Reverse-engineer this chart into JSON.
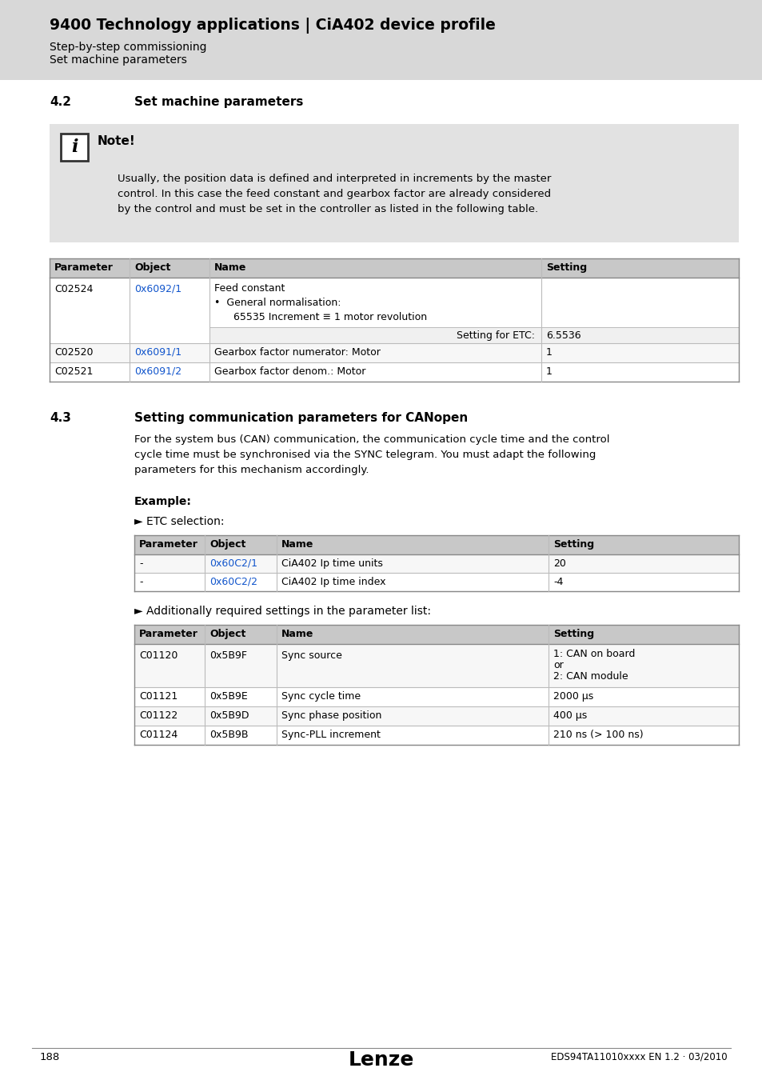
{
  "page_bg": "#ffffff",
  "header_bg": "#d8d8d8",
  "header_title": "9400 Technology applications | CiA402 device profile",
  "header_sub1": "Step-by-step commissioning",
  "header_sub2": "Set machine parameters",
  "section1_num": "4.2",
  "section1_title": "Set machine parameters",
  "note_bg": "#e2e2e2",
  "note_title": "Note!",
  "note_text_lines": [
    "Usually, the position data is defined and interpreted in increments by the master",
    "control. In this case the feed constant and gearbox factor are already considered",
    "by the control and must be set in the controller as listed in the following table."
  ],
  "section2_num": "4.3",
  "section2_title": "Setting communication parameters for CANopen",
  "section2_body_lines": [
    "For the system bus (CAN) communication, the communication cycle time and the control",
    "cycle time must be synchronised via the SYNC telegram. You must adapt the following",
    "parameters for this mechanism accordingly."
  ],
  "example_label": "Example:",
  "etc_label": "► ETC selection:",
  "additional_label": "► Additionally required settings in the parameter list:",
  "footer_page": "188",
  "footer_brand": "Lenze",
  "footer_doc": "EDS94TA11010xxxx EN 1.2 · 03/2010",
  "link_color": "#1155cc",
  "table_header_bg": "#c8c8c8",
  "table_border_dark": "#888888",
  "table_border_light": "#bbbbbb"
}
